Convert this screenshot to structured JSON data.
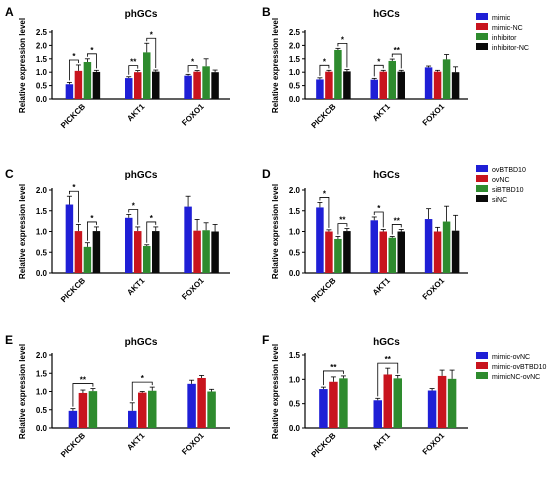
{
  "colors": {
    "blue": "#1f1fd6",
    "red": "#c8141e",
    "green": "#2e8b2e",
    "black": "#0a0a0a"
  },
  "legends": {
    "row1": [
      "mimic",
      "mimic-NC",
      "inhibitor",
      "inhibitor-NC"
    ],
    "row2": [
      "ovBTBD10",
      "ovNC",
      "siBTBD10",
      "siNC"
    ],
    "row3": [
      "mimic-ovNC",
      "mimic-ovBTBD10",
      "mimicNC-ovNC"
    ]
  },
  "chart_data": [
    {
      "panel": "A",
      "type": "bar",
      "title": "phGCs",
      "ylabel": "Relative expression level",
      "ylim": [
        0,
        2.5
      ],
      "yticks": [
        "0.0",
        "0.5",
        "1.0",
        "1.5",
        "2.0",
        "2.5"
      ],
      "categories": [
        "PICKCB",
        "AKT1",
        "FOXO1"
      ],
      "legend_group": "row1",
      "series": [
        {
          "name": "mimic",
          "values": [
            0.55,
            0.78,
            0.87
          ],
          "errors": [
            0.07,
            0.05,
            0.05
          ]
        },
        {
          "name": "mimic-NC",
          "values": [
            1.05,
            1.0,
            1.02
          ],
          "errors": [
            0.22,
            0.06,
            0.04
          ]
        },
        {
          "name": "inhibitor",
          "values": [
            1.38,
            1.74,
            1.22
          ],
          "errors": [
            0.12,
            0.34,
            0.28
          ]
        },
        {
          "name": "inhibitor-NC",
          "values": [
            1.01,
            1.02,
            1.0
          ],
          "errors": [
            0.06,
            0.06,
            0.08
          ]
        }
      ],
      "annotations": [
        {
          "cat": 0,
          "from": 0,
          "to": 1,
          "label": "*"
        },
        {
          "cat": 0,
          "from": 2,
          "to": 3,
          "label": "*"
        },
        {
          "cat": 1,
          "from": 0,
          "to": 1,
          "label": "**"
        },
        {
          "cat": 1,
          "from": 2,
          "to": 3,
          "label": "*"
        },
        {
          "cat": 2,
          "from": 0,
          "to": 1,
          "label": "*"
        }
      ]
    },
    {
      "panel": "B",
      "type": "bar",
      "title": "hGCs",
      "ylabel": "Relative expression level",
      "ylim": [
        0,
        2.5
      ],
      "yticks": [
        "0.0",
        "0.5",
        "1.0",
        "1.5",
        "2.0",
        "2.5"
      ],
      "categories": [
        "PICKCB",
        "AKT1",
        "FOXO1"
      ],
      "legend_group": "row1",
      "series": [
        {
          "name": "mimic",
          "values": [
            0.73,
            0.72,
            1.18
          ],
          "errors": [
            0.06,
            0.05,
            0.05
          ]
        },
        {
          "name": "mimic-NC",
          "values": [
            1.02,
            1.02,
            1.02
          ],
          "errors": [
            0.05,
            0.05,
            0.05
          ]
        },
        {
          "name": "inhibitor",
          "values": [
            1.83,
            1.42,
            1.48
          ],
          "errors": [
            0.06,
            0.07,
            0.18
          ]
        },
        {
          "name": "inhibitor-NC",
          "values": [
            1.03,
            1.02,
            1.0
          ],
          "errors": [
            0.07,
            0.05,
            0.2
          ]
        }
      ],
      "annotations": [
        {
          "cat": 0,
          "from": 0,
          "to": 1,
          "label": "*"
        },
        {
          "cat": 0,
          "from": 2,
          "to": 3,
          "label": "*"
        },
        {
          "cat": 1,
          "from": 0,
          "to": 1,
          "label": "*"
        },
        {
          "cat": 1,
          "from": 2,
          "to": 3,
          "label": "**"
        }
      ]
    },
    {
      "panel": "C",
      "type": "bar",
      "title": "phGCs",
      "ylabel": "Relative expression level",
      "ylim": [
        0,
        2.0
      ],
      "yticks": [
        "0.0",
        "0.5",
        "1.0",
        "1.5",
        "2.0"
      ],
      "categories": [
        "PICKCB",
        "AKT1",
        "FOXO1"
      ],
      "legend_group": "row2",
      "series": [
        {
          "name": "ovBTBD10",
          "values": [
            1.65,
            1.33,
            1.6
          ],
          "errors": [
            0.2,
            0.08,
            0.25
          ]
        },
        {
          "name": "ovNC",
          "values": [
            1.01,
            1.01,
            1.02
          ],
          "errors": [
            0.16,
            0.1,
            0.27
          ]
        },
        {
          "name": "siBTBD10",
          "values": [
            0.63,
            0.65,
            1.03
          ],
          "errors": [
            0.1,
            0.03,
            0.18
          ]
        },
        {
          "name": "siNC",
          "values": [
            1.01,
            1.01,
            1.0
          ],
          "errors": [
            0.1,
            0.1,
            0.17
          ]
        }
      ],
      "annotations": [
        {
          "cat": 0,
          "from": 0,
          "to": 1,
          "label": "*"
        },
        {
          "cat": 0,
          "from": 2,
          "to": 3,
          "label": "*"
        },
        {
          "cat": 1,
          "from": 0,
          "to": 1,
          "label": "*"
        },
        {
          "cat": 1,
          "from": 2,
          "to": 3,
          "label": "*"
        }
      ]
    },
    {
      "panel": "D",
      "type": "bar",
      "title": "hGCs",
      "ylabel": "Relative expression level",
      "ylim": [
        0,
        2.0
      ],
      "yticks": [
        "0.0",
        "0.5",
        "1.0",
        "1.5",
        "2.0"
      ],
      "categories": [
        "PICKCB",
        "AKT1",
        "FOXO1"
      ],
      "legend_group": "row2",
      "series": [
        {
          "name": "ovBTBD10",
          "values": [
            1.58,
            1.27,
            1.3
          ],
          "errors": [
            0.12,
            0.08,
            0.25
          ]
        },
        {
          "name": "ovNC",
          "values": [
            1.0,
            1.0,
            1.0
          ],
          "errors": [
            0.04,
            0.05,
            0.1
          ]
        },
        {
          "name": "siBTBD10",
          "values": [
            0.82,
            0.85,
            1.24
          ],
          "errors": [
            0.06,
            0.03,
            0.37
          ]
        },
        {
          "name": "siNC",
          "values": [
            1.01,
            1.0,
            1.02
          ],
          "errors": [
            0.06,
            0.05,
            0.37
          ]
        }
      ],
      "annotations": [
        {
          "cat": 0,
          "from": 0,
          "to": 1,
          "label": "*"
        },
        {
          "cat": 0,
          "from": 2,
          "to": 3,
          "label": "**"
        },
        {
          "cat": 1,
          "from": 0,
          "to": 1,
          "label": "*"
        },
        {
          "cat": 1,
          "from": 2,
          "to": 3,
          "label": "**"
        }
      ]
    },
    {
      "panel": "E",
      "type": "bar",
      "title": "phGCs",
      "ylabel": "Relative expression level",
      "ylim": [
        0,
        2.0
      ],
      "yticks": [
        "0.0",
        "0.5",
        "1.0",
        "1.5",
        "2.0"
      ],
      "categories": [
        "PICKCB",
        "AKT1",
        "FOXO1"
      ],
      "legend_group": "row3",
      "series": [
        {
          "name": "mimic-ovNC",
          "values": [
            0.47,
            0.47,
            1.21
          ],
          "errors": [
            0.06,
            0.22,
            0.1
          ]
        },
        {
          "name": "mimic-ovBTBD10",
          "values": [
            0.96,
            0.97,
            1.37
          ],
          "errors": [
            0.08,
            0.03,
            0.07
          ]
        },
        {
          "name": "mimicNC-ovNC",
          "values": [
            1.01,
            1.02,
            1.0
          ],
          "errors": [
            0.07,
            0.1,
            0.06
          ]
        }
      ],
      "annotations": [
        {
          "cat": 0,
          "from": 0,
          "to": 2,
          "label": "**"
        },
        {
          "cat": 1,
          "from": 0,
          "to": 2,
          "label": "*"
        }
      ]
    },
    {
      "panel": "F",
      "type": "bar",
      "title": "hGCs",
      "ylabel": "Relative expression level",
      "ylim": [
        0,
        1.5
      ],
      "yticks": [
        "0.0",
        "0.5",
        "1.0",
        "1.5"
      ],
      "categories": [
        "PICKCB",
        "AKT1",
        "FOXO1"
      ],
      "legend_group": "row3",
      "series": [
        {
          "name": "mimic-ovNC",
          "values": [
            0.8,
            0.57,
            0.77
          ],
          "errors": [
            0.04,
            0.04,
            0.04
          ]
        },
        {
          "name": "mimic-ovBTBD10",
          "values": [
            0.95,
            1.1,
            1.07
          ],
          "errors": [
            0.1,
            0.13,
            0.12
          ]
        },
        {
          "name": "mimicNC-ovNC",
          "values": [
            1.02,
            1.02,
            1.01
          ],
          "errors": [
            0.05,
            0.06,
            0.18
          ]
        }
      ],
      "annotations": [
        {
          "cat": 0,
          "from": 0,
          "to": 2,
          "label": "**"
        },
        {
          "cat": 1,
          "from": 0,
          "to": 2,
          "label": "**"
        }
      ]
    }
  ]
}
